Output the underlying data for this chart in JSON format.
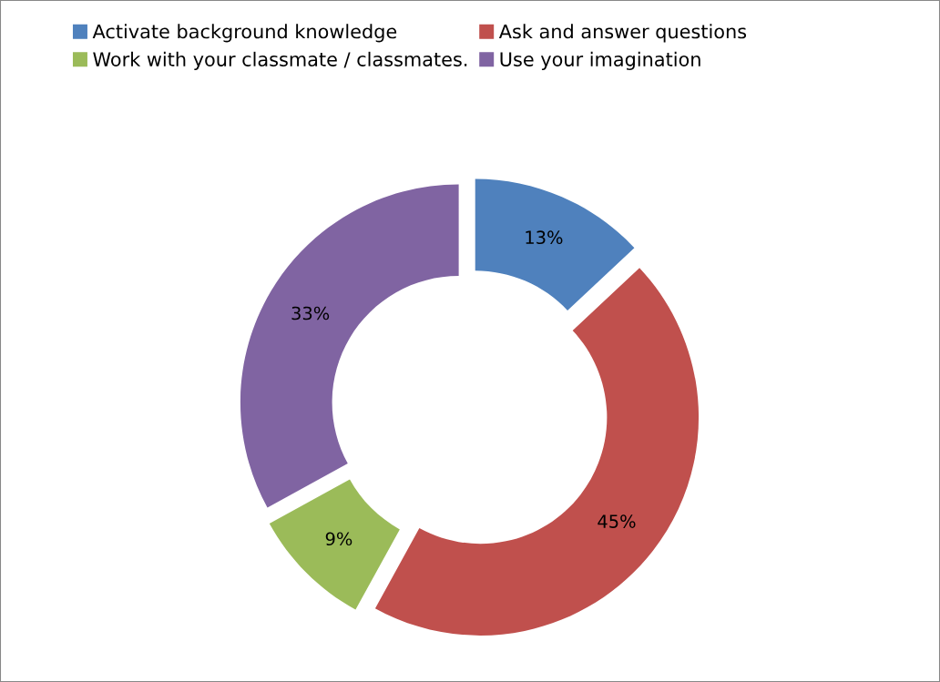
{
  "chart_data": {
    "type": "donut",
    "categories": [
      "Activate background knowledge",
      "Ask and answer questions",
      "Work with your classmate / classmates.",
      "Use your imagination"
    ],
    "values": [
      13,
      45,
      9,
      33
    ],
    "colors": [
      "#4f81bd",
      "#c0504d",
      "#9bbb59",
      "#8064a2"
    ],
    "value_labels": [
      "13%",
      "45%",
      "9%",
      "33%"
    ],
    "legend": "top"
  }
}
